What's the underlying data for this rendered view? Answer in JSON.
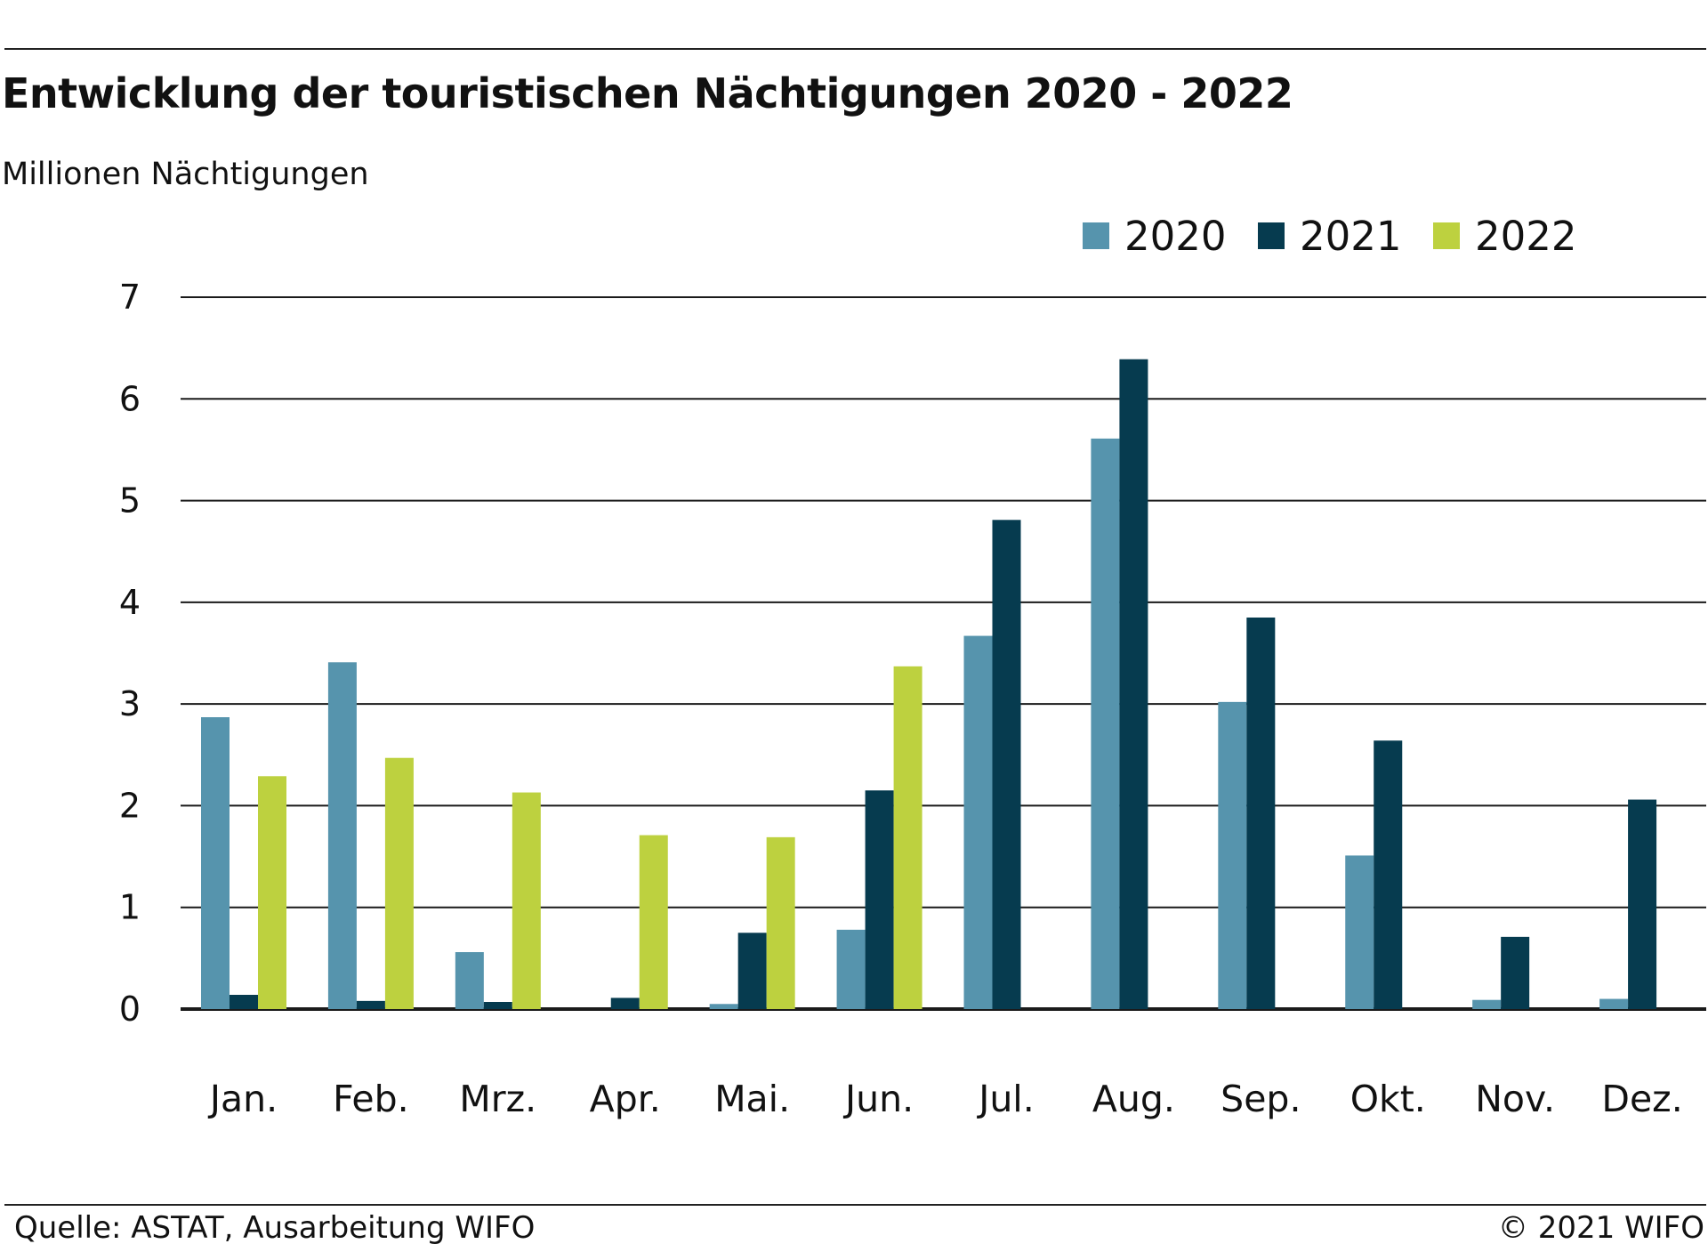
{
  "chart_data": {
    "type": "bar",
    "title": "Entwicklung der touristischen Nächtigungen 2020 - 2022",
    "ylabel": "Millionen Nächtigungen",
    "xlabel": "",
    "categories": [
      "Jan.",
      "Feb.",
      "Mrz.",
      "Apr.",
      "Mai.",
      "Jun.",
      "Jul.",
      "Aug.",
      "Sep.",
      "Okt.",
      "Nov.",
      "Dez."
    ],
    "series": [
      {
        "name": "2020",
        "color": "#5694ad",
        "values": [
          2.87,
          3.41,
          0.56,
          0.0,
          0.05,
          0.78,
          3.67,
          5.61,
          3.02,
          1.51,
          0.09,
          0.1
        ]
      },
      {
        "name": "2021",
        "color": "#063b4f",
        "values": [
          0.14,
          0.08,
          0.07,
          0.11,
          0.75,
          2.15,
          4.81,
          6.39,
          3.85,
          2.64,
          0.71,
          2.06
        ]
      },
      {
        "name": "2022",
        "color": "#bdd13f",
        "values": [
          2.29,
          2.47,
          2.13,
          1.71,
          1.69,
          3.37,
          null,
          null,
          null,
          null,
          null,
          null
        ]
      }
    ],
    "ylim": [
      0,
      7
    ],
    "yticks": [
      0,
      1,
      2,
      3,
      4,
      5,
      6,
      7
    ],
    "grid": true,
    "legend_position": "top-right"
  },
  "footer": {
    "source": "Quelle: ASTAT, Ausarbeitung WIFO",
    "copyright": "© 2021 WIFO"
  }
}
